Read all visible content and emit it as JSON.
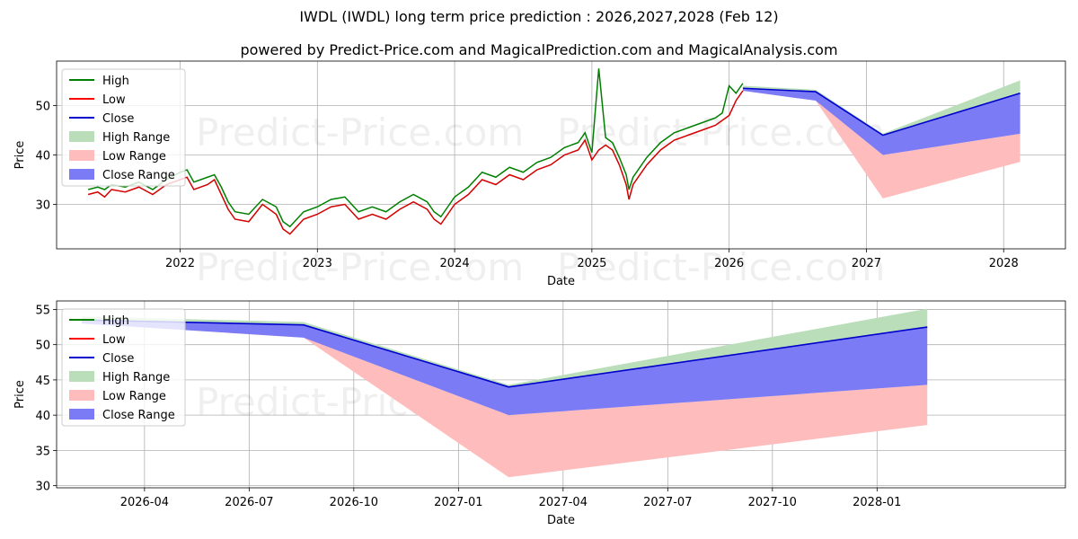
{
  "chart_data": [
    {
      "type": "line",
      "title": "IWDL (IWDL) long term price prediction : 2026,2027,2028 (Feb 12)",
      "subtitle": "powered by Predict-Price.com and MagicalPrediction.com and MagicalAnalysis.com",
      "xlabel": "Date",
      "ylabel": "Price",
      "xlim": [
        2021.1,
        2028.45
      ],
      "ylim": [
        21,
        59
      ],
      "xticks": [
        2022,
        2023,
        2024,
        2025,
        2026,
        2027,
        2028
      ],
      "xtick_labels": [
        "2022",
        "2023",
        "2024",
        "2025",
        "2026",
        "2027",
        "2028"
      ],
      "yticks": [
        30,
        40,
        50
      ],
      "yticks_labels": [
        "30",
        "40",
        "50"
      ],
      "grid": true,
      "legend": "upper left",
      "watermark": "Predict-Price.com",
      "history": {
        "x": [
          2021.33,
          2021.4,
          2021.45,
          2021.5,
          2021.6,
          2021.7,
          2021.8,
          2021.9,
          2022.0,
          2022.05,
          2022.1,
          2022.2,
          2022.25,
          2022.3,
          2022.35,
          2022.4,
          2022.5,
          2022.6,
          2022.7,
          2022.75,
          2022.8,
          2022.9,
          2023.0,
          2023.1,
          2023.2,
          2023.3,
          2023.4,
          2023.5,
          2023.6,
          2023.7,
          2023.8,
          2023.85,
          2023.9,
          2024.0,
          2024.1,
          2024.2,
          2024.3,
          2024.4,
          2024.5,
          2024.6,
          2024.7,
          2024.8,
          2024.9,
          2024.95,
          2025.0,
          2025.05,
          2025.1,
          2025.15,
          2025.2,
          2025.25,
          2025.27,
          2025.3,
          2025.4,
          2025.5,
          2025.6,
          2025.7,
          2025.8,
          2025.9,
          2025.95,
          2026.0,
          2026.05,
          2026.1
        ],
        "low": [
          32,
          32.5,
          31.5,
          33,
          32.5,
          33.5,
          32,
          34,
          35,
          35.5,
          33,
          34,
          35,
          32,
          29,
          27,
          26.5,
          30,
          28,
          25,
          24,
          27,
          28,
          29.5,
          30,
          27,
          28,
          27,
          29,
          30.5,
          29,
          27,
          26,
          30,
          32,
          35,
          34,
          36,
          35,
          37,
          38,
          40,
          41,
          43,
          39,
          41,
          42,
          41,
          38,
          34,
          31,
          34,
          38,
          41,
          43,
          44,
          45,
          46,
          47,
          48,
          51,
          53
        ],
        "high": [
          33,
          33.5,
          33,
          34,
          33.5,
          34.5,
          33,
          35,
          36.5,
          37,
          34.5,
          35.5,
          36,
          33.5,
          30.5,
          28.5,
          28,
          31,
          29.5,
          26.5,
          25.5,
          28.5,
          29.5,
          31,
          31.5,
          28.5,
          29.5,
          28.5,
          30.5,
          32,
          30.5,
          28.5,
          27.5,
          31.5,
          33.5,
          36.5,
          35.5,
          37.5,
          36.5,
          38.5,
          39.5,
          41.5,
          42.5,
          44.5,
          40.5,
          57.5,
          43.5,
          42.5,
          39.5,
          36,
          33,
          35.5,
          39.5,
          42.5,
          44.5,
          45.5,
          46.5,
          47.5,
          48.5,
          54,
          52.5,
          54.5
        ]
      },
      "forecast": {
        "x": [
          2026.1,
          2026.63,
          2027.12,
          2028.12
        ],
        "close": [
          53.5,
          52.8,
          44.0,
          52.5
        ],
        "close_range_low": [
          53.0,
          51.0,
          40.0,
          44.3
        ],
        "high_range": [
          54.0,
          53.2,
          44.3,
          55.1
        ],
        "low_range": [
          53.5,
          51.0,
          31.2,
          38.6
        ]
      }
    },
    {
      "type": "line",
      "xlabel": "Date",
      "ylabel": "Price",
      "xlim": [
        2026.04,
        2028.45
      ],
      "ylim": [
        29.7,
        56.2
      ],
      "xticks": [
        2026.25,
        2026.5,
        2026.75,
        2027.0,
        2027.25,
        2027.5,
        2027.75,
        2028.0
      ],
      "xtick_labels": [
        "2026-04",
        "2026-07",
        "2026-10",
        "2027-01",
        "2027-04",
        "2027-07",
        "2027-10",
        "2028-01"
      ],
      "yticks": [
        30,
        35,
        40,
        45,
        50,
        55
      ],
      "yticks_labels": [
        "30",
        "35",
        "40",
        "45",
        "50",
        "55"
      ],
      "grid": true,
      "legend": "upper left",
      "watermark": "Predict-Price.com",
      "forecast": {
        "x": [
          2026.1,
          2026.63,
          2027.12,
          2028.12
        ],
        "close": [
          53.5,
          52.8,
          44.0,
          52.5
        ],
        "close_range_low": [
          53.0,
          51.0,
          40.0,
          44.3
        ],
        "high_range": [
          54.0,
          53.2,
          44.3,
          55.1
        ],
        "low_range": [
          53.5,
          51.0,
          31.2,
          38.6
        ]
      }
    }
  ],
  "legend": {
    "items": [
      {
        "label": "High",
        "kind": "line",
        "color": "#008000"
      },
      {
        "label": "Low",
        "kind": "line",
        "color": "#ff0000"
      },
      {
        "label": "Close",
        "kind": "line",
        "color": "#0000cc"
      },
      {
        "label": "High Range",
        "kind": "patch",
        "color": "#b9deb9"
      },
      {
        "label": "Low Range",
        "kind": "patch",
        "color": "#ffbcbc"
      },
      {
        "label": "Close Range",
        "kind": "patch",
        "color": "#7b7bf5"
      }
    ]
  },
  "colors": {
    "high": "#008000",
    "low": "#d40000",
    "close": "#0000cc",
    "high_range": "#b9deb9",
    "low_range": "#ffbcbc",
    "close_range": "#7b7bf5"
  }
}
